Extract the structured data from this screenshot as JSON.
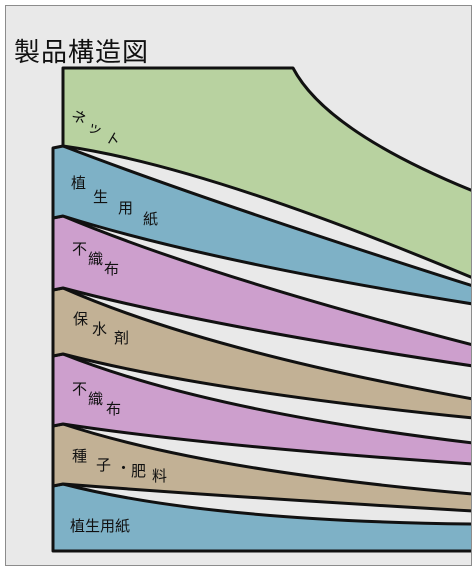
{
  "title": "製品構造図",
  "layers": [
    {
      "label": "ネット",
      "chars": [
        "ネ",
        "ッ",
        "ト"
      ],
      "color": "#b8d2a0"
    },
    {
      "label": "植生用紙",
      "chars": [
        "植",
        "生",
        "用",
        "紙"
      ],
      "color": "#7eb1c6"
    },
    {
      "label": "不織布",
      "chars": [
        "不",
        "織",
        "布"
      ],
      "color": "#cd9fcd"
    },
    {
      "label": "保水剤",
      "chars": [
        "保",
        "水",
        "剤"
      ],
      "color": "#c2b195"
    },
    {
      "label": "不織布",
      "chars": [
        "不",
        "織",
        "布"
      ],
      "color": "#cd9fcd"
    },
    {
      "label": "種子・肥料",
      "chars": [
        "種",
        "子",
        "・",
        "肥",
        "料"
      ],
      "color": "#c2b195"
    },
    {
      "label": "植生用紙",
      "chars": [
        "植",
        "生",
        "用",
        "紙"
      ],
      "color": "#7eb1c6"
    }
  ],
  "colors": {
    "background": "#e9e9e9",
    "outline": "#111111",
    "frame": "#8c8c8c"
  }
}
